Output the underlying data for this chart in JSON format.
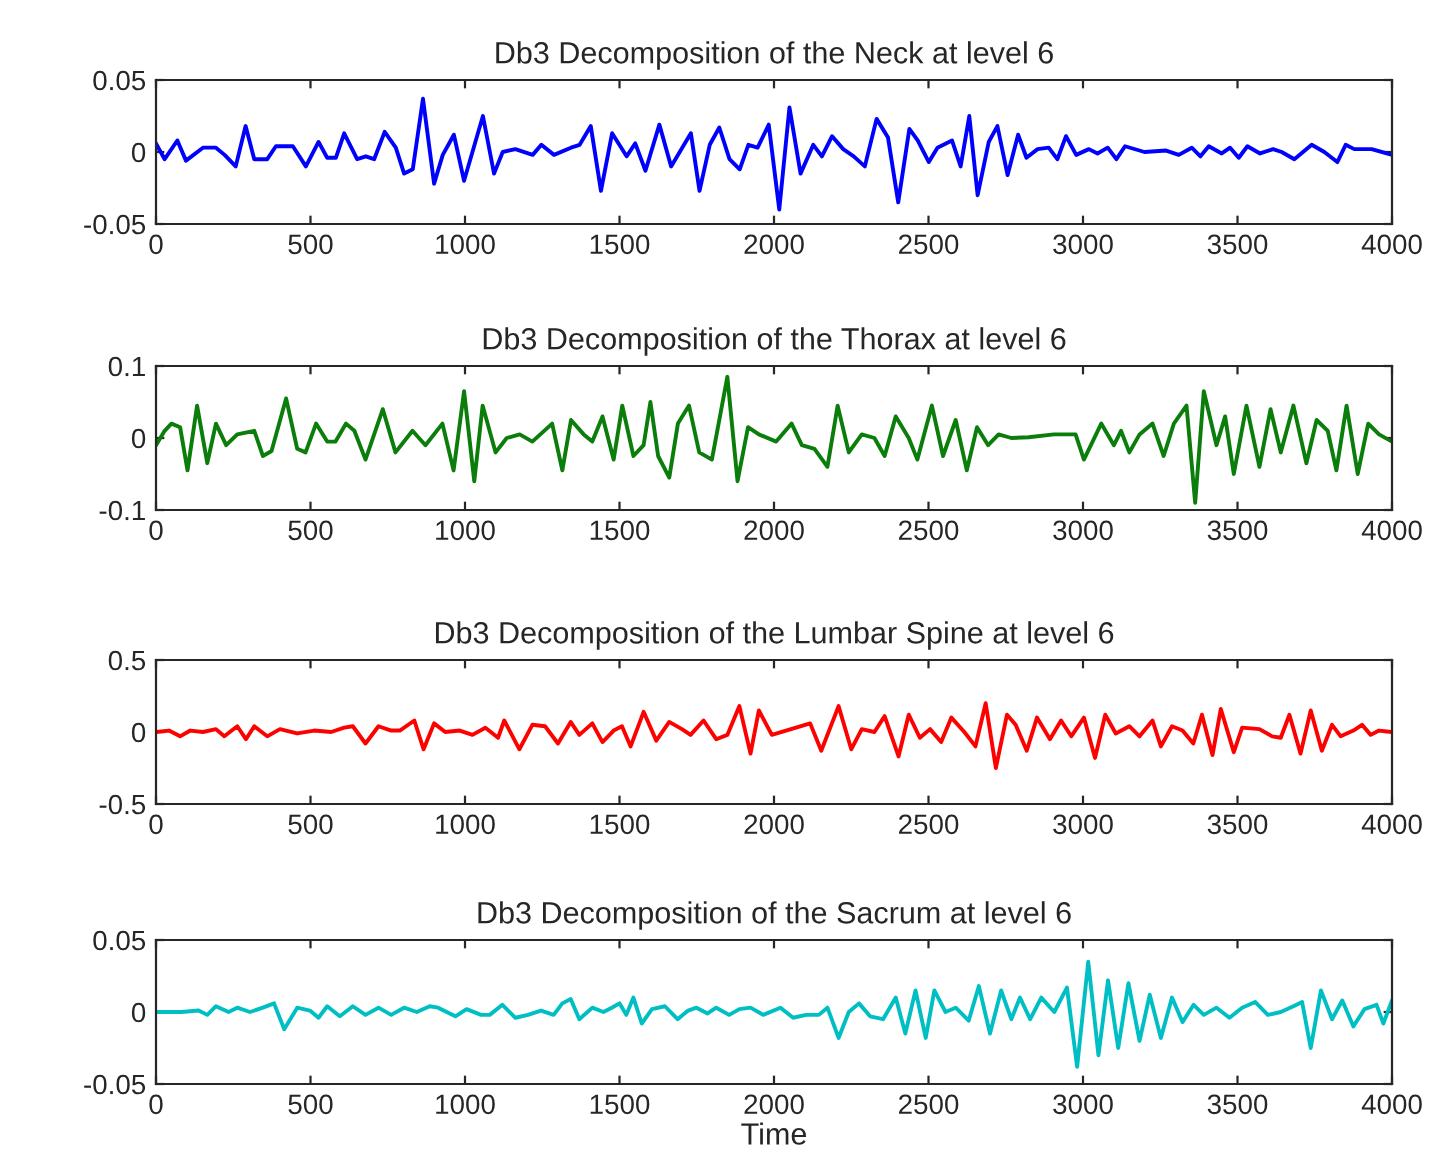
{
  "chart_data": [
    {
      "type": "line",
      "title": "Db3 Decomposition of the Neck at level 6",
      "xlim": [
        0,
        4000
      ],
      "xticks": [
        0,
        500,
        1000,
        1500,
        2000,
        2500,
        3000,
        3500,
        4000
      ],
      "ylim": [
        -0.05,
        0.05
      ],
      "yticks": [
        -0.05,
        0,
        0.05
      ],
      "grid": false,
      "series": [
        {
          "color": "#0000ff",
          "x": [
            0,
            28,
            69,
            97,
            152,
            194,
            222,
            258,
            290,
            318,
            360,
            388,
            443,
            485,
            526,
            554,
            582,
            609,
            651,
            679,
            706,
            740,
            776,
            803,
            831,
            864,
            900,
            928,
            964,
            997,
            1058,
            1094,
            1122,
            1163,
            1219,
            1247,
            1288,
            1343,
            1371,
            1407,
            1440,
            1476,
            1523,
            1551,
            1584,
            1629,
            1667,
            1703,
            1731,
            1759,
            1792,
            1823,
            1856,
            1889,
            1917,
            1947,
            1983,
            2017,
            2050,
            2086,
            2127,
            2155,
            2188,
            2224,
            2258,
            2294,
            2332,
            2369,
            2402,
            2438,
            2465,
            2501,
            2529,
            2576,
            2604,
            2632,
            2659,
            2695,
            2723,
            2756,
            2790,
            2817,
            2853,
            2889,
            2917,
            2945,
            2978,
            3019,
            3047,
            3080,
            3108,
            3136,
            3199,
            3269,
            3310,
            3352,
            3380,
            3407,
            3449,
            3476,
            3504,
            3532,
            3573,
            3615,
            3643,
            3684,
            3740,
            3781,
            3823,
            3850,
            3878,
            3934,
            4000
          ],
          "values": [
            0.006,
            -0.005,
            0.008,
            -0.006,
            0.003,
            0.003,
            -0.002,
            -0.01,
            0.018,
            -0.005,
            -0.005,
            0.004,
            0.004,
            -0.01,
            0.007,
            -0.004,
            -0.004,
            0.013,
            -0.005,
            -0.003,
            -0.005,
            0.014,
            0.003,
            -0.015,
            -0.012,
            0.037,
            -0.022,
            -0.002,
            0.012,
            -0.02,
            0.025,
            -0.015,
            0,
            0.002,
            -0.002,
            0.005,
            -0.002,
            0.003,
            0.005,
            0.018,
            -0.027,
            0.013,
            -0.003,
            0.006,
            -0.013,
            0.019,
            -0.01,
            0.003,
            0.013,
            -0.027,
            0.005,
            0.017,
            -0.005,
            -0.012,
            0.005,
            0.003,
            0.019,
            -0.04,
            0.031,
            -0.015,
            0.005,
            -0.003,
            0.011,
            0.002,
            -0.003,
            -0.01,
            0.023,
            0.01,
            -0.035,
            0.016,
            0.008,
            -0.007,
            0.003,
            0.008,
            -0.01,
            0.025,
            -0.03,
            0.007,
            0.018,
            -0.016,
            0.012,
            -0.004,
            0.002,
            0.003,
            -0.005,
            0.011,
            -0.002,
            0.002,
            -0.001,
            0.003,
            -0.005,
            0.004,
            0,
            0.001,
            -0.002,
            0.003,
            -0.003,
            0.004,
            -0.001,
            0.003,
            -0.004,
            0.004,
            -0.001,
            0.002,
            0,
            -0.005,
            0.005,
            0,
            -0.007,
            0.005,
            0.002,
            0.002,
            -0.002
          ]
        }
      ]
    },
    {
      "type": "line",
      "title": "Db3 Decomposition of the Thorax at level 6",
      "xlim": [
        0,
        4000
      ],
      "xticks": [
        0,
        500,
        1000,
        1500,
        2000,
        2500,
        3000,
        3500,
        4000
      ],
      "ylim": [
        -0.1,
        0.1
      ],
      "yticks": [
        -0.1,
        0,
        0.1
      ],
      "grid": false,
      "series": [
        {
          "color": "#0a7d0a",
          "x": [
            0,
            28,
            50,
            78,
            102,
            133,
            166,
            194,
            227,
            263,
            318,
            346,
            374,
            421,
            457,
            484,
            518,
            554,
            581,
            615,
            642,
            678,
            734,
            775,
            830,
            872,
            927,
            963,
            997,
            1030,
            1057,
            1099,
            1135,
            1177,
            1218,
            1282,
            1315,
            1343,
            1384,
            1412,
            1445,
            1481,
            1509,
            1545,
            1578,
            1600,
            1625,
            1661,
            1689,
            1725,
            1758,
            1799,
            1849,
            1882,
            1916,
            1951,
            2007,
            2057,
            2090,
            2131,
            2173,
            2206,
            2242,
            2284,
            2325,
            2358,
            2394,
            2436,
            2464,
            2511,
            2547,
            2588,
            2624,
            2657,
            2693,
            2727,
            2768,
            2824,
            2906,
            2976,
            3003,
            3059,
            3100,
            3123,
            3150,
            3183,
            3225,
            3261,
            3294,
            3335,
            3363,
            3391,
            3432,
            3460,
            3488,
            3529,
            3571,
            3607,
            3640,
            3681,
            3723,
            3756,
            3792,
            3820,
            3853,
            3889,
            3923,
            3958,
            4000
          ],
          "values": [
            -0.01,
            0.01,
            0.02,
            0.015,
            -0.045,
            0.045,
            -0.035,
            0.02,
            -0.01,
            0.005,
            0.01,
            -0.025,
            -0.018,
            0.055,
            -0.015,
            -0.02,
            0.02,
            -0.005,
            -0.005,
            0.02,
            0.01,
            -0.03,
            0.04,
            -0.02,
            0.01,
            -0.01,
            0.02,
            -0.045,
            0.065,
            -0.06,
            0.045,
            -0.02,
            0,
            0.005,
            -0.005,
            0.02,
            -0.045,
            0.025,
            0.005,
            -0.005,
            0.03,
            -0.03,
            0.045,
            -0.025,
            -0.01,
            0.05,
            -0.025,
            -0.055,
            0.02,
            0.045,
            -0.02,
            -0.03,
            0.085,
            -0.06,
            0.015,
            0.005,
            -0.005,
            0.02,
            -0.01,
            -0.015,
            -0.04,
            0.045,
            -0.02,
            0.005,
            0,
            -0.025,
            0.03,
            0,
            -0.03,
            0.045,
            -0.025,
            0.025,
            -0.045,
            0.015,
            -0.01,
            0.005,
            0,
            0.001,
            0.005,
            0.005,
            -0.03,
            0.02,
            -0.01,
            0.01,
            -0.02,
            0.005,
            0.02,
            -0.025,
            0.02,
            0.045,
            -0.09,
            0.065,
            -0.01,
            0.03,
            -0.05,
            0.045,
            -0.04,
            0.04,
            -0.02,
            0.045,
            -0.035,
            0.025,
            0.01,
            -0.045,
            0.045,
            -0.05,
            0.02,
            0.005,
            -0.005
          ]
        }
      ]
    },
    {
      "type": "line",
      "title": "Db3 Decomposition of the Lumbar Spine at level 6",
      "xlim": [
        0,
        4000
      ],
      "xticks": [
        0,
        500,
        1000,
        1500,
        2000,
        2500,
        3000,
        3500,
        4000
      ],
      "ylim": [
        -0.5,
        0.5
      ],
      "yticks": [
        -0.5,
        0,
        0.5
      ],
      "grid": false,
      "series": [
        {
          "color": "#ff0000",
          "x": [
            0,
            42,
            78,
            111,
            152,
            194,
            221,
            263,
            291,
            318,
            360,
            401,
            457,
            512,
            567,
            609,
            637,
            678,
            720,
            761,
            789,
            836,
            866,
            900,
            936,
            983,
            1024,
            1066,
            1107,
            1127,
            1176,
            1218,
            1259,
            1301,
            1342,
            1370,
            1412,
            1445,
            1481,
            1508,
            1536,
            1578,
            1619,
            1661,
            1702,
            1730,
            1772,
            1813,
            1849,
            1888,
            1924,
            1951,
            1993,
            2117,
            2153,
            2209,
            2250,
            2284,
            2325,
            2358,
            2403,
            2436,
            2472,
            2505,
            2541,
            2574,
            2616,
            2652,
            2685,
            2718,
            2754,
            2782,
            2818,
            2851,
            2893,
            2929,
            2962,
            3003,
            3039,
            3072,
            3106,
            3150,
            3183,
            3225,
            3252,
            3288,
            3322,
            3357,
            3385,
            3419,
            3446,
            3488,
            3515,
            3571,
            3612,
            3640,
            3668,
            3704,
            3737,
            3773,
            3806,
            3834,
            3875,
            3903,
            3931,
            3958,
            4000
          ],
          "values": [
            0,
            0.01,
            -0.03,
            0.01,
            0,
            0.02,
            -0.03,
            0.04,
            -0.05,
            0.04,
            -0.03,
            0.02,
            -0.01,
            0.01,
            0,
            0.03,
            0.04,
            -0.08,
            0.04,
            0.01,
            0.01,
            0.08,
            -0.12,
            0.06,
            0,
            0.01,
            -0.02,
            0.03,
            -0.04,
            0.08,
            -0.12,
            0.05,
            0.04,
            -0.08,
            0.07,
            -0.02,
            0.06,
            -0.07,
            0.01,
            0.04,
            -0.1,
            0.14,
            -0.06,
            0.07,
            0.02,
            -0.02,
            0.08,
            -0.05,
            -0.02,
            0.18,
            -0.15,
            0.15,
            -0.02,
            0.06,
            -0.13,
            0.18,
            -0.12,
            0.02,
            0,
            0.11,
            -0.17,
            0.12,
            -0.04,
            0.02,
            -0.07,
            0.1,
            0,
            -0.1,
            0.2,
            -0.25,
            0.12,
            0.05,
            -0.13,
            0.1,
            -0.05,
            0.08,
            -0.03,
            0.1,
            -0.18,
            0.12,
            -0.01,
            0.04,
            -0.03,
            0.08,
            -0.1,
            0.04,
            0.01,
            -0.08,
            0.12,
            -0.16,
            0.16,
            -0.14,
            0.03,
            0.02,
            -0.03,
            -0.04,
            0.12,
            -0.15,
            0.15,
            -0.13,
            0.05,
            -0.03,
            0.01,
            0.05,
            -0.02,
            0.01,
            0
          ]
        }
      ]
    },
    {
      "type": "line",
      "title": "Db3 Decomposition of the Sacrum at level 6",
      "xlabel": "Time",
      "xlim": [
        0,
        4000
      ],
      "xticks": [
        0,
        500,
        1000,
        1500,
        2000,
        2500,
        3000,
        3500,
        4000
      ],
      "ylim": [
        -0.05,
        0.05
      ],
      "yticks": [
        -0.05,
        0,
        0.05
      ],
      "grid": false,
      "series": [
        {
          "color": "#00bfc4",
          "x": [
            0,
            83,
            138,
            166,
            194,
            235,
            263,
            304,
            346,
            382,
            415,
            457,
            498,
            526,
            554,
            595,
            637,
            678,
            720,
            761,
            803,
            844,
            886,
            913,
            969,
            1005,
            1052,
            1080,
            1121,
            1163,
            1204,
            1246,
            1287,
            1315,
            1342,
            1370,
            1412,
            1448,
            1475,
            1500,
            1522,
            1545,
            1572,
            1605,
            1647,
            1688,
            1722,
            1749,
            1785,
            1813,
            1855,
            1888,
            1924,
            1965,
            2021,
            2062,
            2104,
            2145,
            2173,
            2209,
            2242,
            2275,
            2311,
            2353,
            2394,
            2425,
            2458,
            2491,
            2519,
            2555,
            2588,
            2630,
            2663,
            2699,
            2735,
            2768,
            2796,
            2829,
            2865,
            2907,
            2948,
            2981,
            3017,
            3050,
            3081,
            3114,
            3147,
            3183,
            3216,
            3252,
            3288,
            3322,
            3358,
            3391,
            3432,
            3474,
            3515,
            3557,
            3598,
            3640,
            3681,
            3709,
            3737,
            3770,
            3806,
            3839,
            3875,
            3911,
            3950,
            3972,
            4000
          ],
          "values": [
            0,
            0,
            0.001,
            -0.002,
            0.004,
            0,
            0.003,
            0,
            0.003,
            0.006,
            -0.012,
            0.003,
            0.001,
            -0.004,
            0.004,
            -0.003,
            0.004,
            -0.002,
            0.003,
            -0.002,
            0.003,
            0,
            0.004,
            0.003,
            -0.003,
            0.002,
            -0.002,
            -0.002,
            0.005,
            -0.004,
            -0.002,
            0.001,
            -0.002,
            0.006,
            0.009,
            -0.005,
            0.003,
            0,
            0.003,
            0.006,
            -0.002,
            0.01,
            -0.008,
            0.002,
            0.004,
            -0.005,
            0.001,
            0.003,
            -0.001,
            0.003,
            -0.002,
            0.002,
            0.003,
            -0.002,
            0.003,
            -0.004,
            -0.002,
            -0.002,
            0.003,
            -0.018,
            0,
            0.006,
            -0.003,
            -0.005,
            0.01,
            -0.015,
            0.015,
            -0.018,
            0.015,
            0,
            0.003,
            -0.006,
            0.018,
            -0.015,
            0.015,
            -0.005,
            0.01,
            -0.005,
            0.01,
            0,
            0.017,
            -0.038,
            0.035,
            -0.03,
            0.022,
            -0.025,
            0.02,
            -0.02,
            0.012,
            -0.018,
            0.01,
            -0.007,
            0.005,
            -0.002,
            0.003,
            -0.004,
            0.003,
            0.007,
            -0.002,
            0,
            0.004,
            0.007,
            -0.025,
            0.015,
            -0.005,
            0.008,
            -0.01,
            0.002,
            0.005,
            -0.008,
            0.008
          ]
        }
      ]
    }
  ]
}
